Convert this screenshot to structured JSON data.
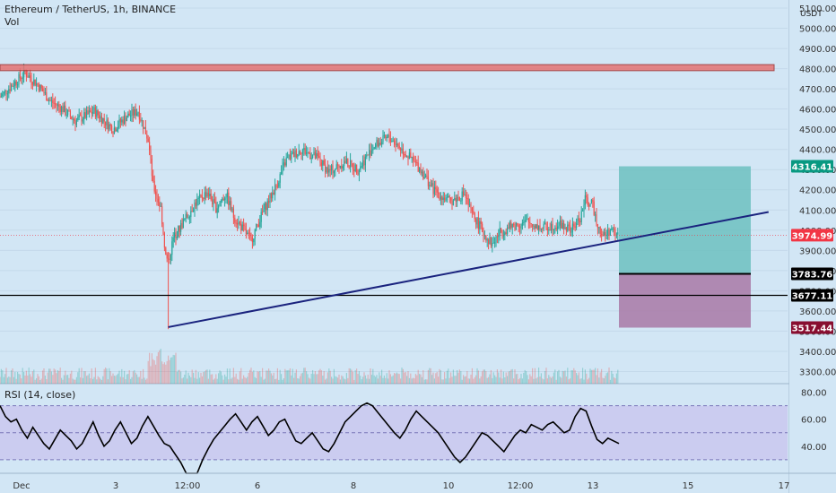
{
  "header": {
    "symbol_line": "Ethereum / TetherUS, 1h, BINANCE",
    "volume_label": "Vol"
  },
  "rsi_header": "RSI (14, close)",
  "colors": {
    "background": "#d2e6f5",
    "up": "#26a69a",
    "down": "#ef5350",
    "trendline": "#1a237e",
    "level_line": "#000000",
    "target_zone": "#6dbfbf",
    "stop_zone": "#a978a6",
    "resistance_band": "#e57373",
    "rsi_band": "#c9c6ef",
    "rsi_line": "#000000",
    "price_tag_green": "#089981",
    "price_tag_red": "#f23645",
    "price_tag_dark": "#000000",
    "price_tag_maroon": "#880e30"
  },
  "chart_data": [
    {
      "type": "candlestick",
      "title": "Ethereum / TetherUS, 1h, BINANCE",
      "y_unit": "USDT",
      "ylim": [
        3240,
        5140
      ],
      "yticks": [
        3300,
        3400,
        3500,
        3600,
        3700,
        3800,
        3900,
        4000,
        4100,
        4200,
        4300,
        4400,
        4500,
        4600,
        4700,
        4800,
        4900,
        5000,
        5100
      ],
      "ytick_labels": [
        "3300.00",
        "3400.00",
        "3500.00",
        "3600.00",
        "3700.00",
        "3800.00",
        "3900.00",
        "4000.00",
        "4100.00",
        "4200.00",
        "4300.00",
        "4400.00",
        "4500.00",
        "4600.00",
        "4700.00",
        "4800.00",
        "4900.00",
        "5000.00",
        "5100.00"
      ],
      "x_labels": [
        "Dec",
        "3",
        "12:00",
        "6",
        "8",
        "10",
        "12:00",
        "13",
        "15",
        "17"
      ],
      "price_path": [
        {
          "t": 0,
          "p": 4660
        },
        {
          "t": 10,
          "p": 4720
        },
        {
          "t": 20,
          "p": 4780
        },
        {
          "t": 30,
          "p": 4720
        },
        {
          "t": 40,
          "p": 4640
        },
        {
          "t": 50,
          "p": 4600
        },
        {
          "t": 60,
          "p": 4540
        },
        {
          "t": 75,
          "p": 4590
        },
        {
          "t": 90,
          "p": 4500
        },
        {
          "t": 100,
          "p": 4560
        },
        {
          "t": 110,
          "p": 4590
        },
        {
          "t": 118,
          "p": 4450
        },
        {
          "t": 122,
          "p": 4220
        },
        {
          "t": 128,
          "p": 4110
        },
        {
          "t": 132,
          "p": 3870
        },
        {
          "t": 134,
          "p": 3840
        },
        {
          "t": 138,
          "p": 3960
        },
        {
          "t": 146,
          "p": 4040
        },
        {
          "t": 155,
          "p": 4130
        },
        {
          "t": 165,
          "p": 4190
        },
        {
          "t": 172,
          "p": 4110
        },
        {
          "t": 180,
          "p": 4180
        },
        {
          "t": 186,
          "p": 4070
        },
        {
          "t": 194,
          "p": 4000
        },
        {
          "t": 200,
          "p": 3950
        },
        {
          "t": 210,
          "p": 4100
        },
        {
          "t": 220,
          "p": 4220
        },
        {
          "t": 228,
          "p": 4350
        },
        {
          "t": 240,
          "p": 4400
        },
        {
          "t": 252,
          "p": 4360
        },
        {
          "t": 262,
          "p": 4290
        },
        {
          "t": 275,
          "p": 4340
        },
        {
          "t": 285,
          "p": 4300
        },
        {
          "t": 298,
          "p": 4420
        },
        {
          "t": 310,
          "p": 4460
        },
        {
          "t": 320,
          "p": 4400
        },
        {
          "t": 335,
          "p": 4300
        },
        {
          "t": 345,
          "p": 4200
        },
        {
          "t": 358,
          "p": 4140
        },
        {
          "t": 370,
          "p": 4180
        },
        {
          "t": 375,
          "p": 4090
        },
        {
          "t": 380,
          "p": 4040
        },
        {
          "t": 388,
          "p": 3960
        },
        {
          "t": 392,
          "p": 3930
        },
        {
          "t": 398,
          "p": 3990
        },
        {
          "t": 408,
          "p": 4020
        },
        {
          "t": 420,
          "p": 4040
        },
        {
          "t": 432,
          "p": 4010
        },
        {
          "t": 445,
          "p": 4030
        },
        {
          "t": 455,
          "p": 4000
        },
        {
          "t": 462,
          "p": 4060
        },
        {
          "t": 466,
          "p": 4150
        },
        {
          "t": 472,
          "p": 4120
        },
        {
          "t": 476,
          "p": 4030
        },
        {
          "t": 480,
          "p": 3970
        },
        {
          "t": 486,
          "p": 4000
        },
        {
          "t": 492,
          "p": 3975
        }
      ],
      "notable_points": {
        "peak_high": 4790,
        "crash_low": 3510,
        "crash_bounce_low": 3820,
        "mid_high": 4480,
        "dip_low": 3810,
        "recent_high": 4170,
        "last_price": 3974.99
      },
      "price_labels": [
        {
          "name": "target",
          "value": "4316.41"
        },
        {
          "name": "last",
          "value": "3974.99"
        },
        {
          "name": "entry",
          "value": "3783.76"
        },
        {
          "name": "support",
          "value": "3677.11"
        },
        {
          "name": "stop",
          "value": "3517.44"
        }
      ],
      "drawings": {
        "resistance_band": [
          4790,
          4820
        ],
        "horizontal_level": 3677.11,
        "trendline": {
          "from": {
            "t": 134,
            "p": 3520
          },
          "to": {
            "t": 612,
            "p": 4090
          }
        },
        "long_position": {
          "target": 4316.41,
          "entry": 3783.76,
          "stop": 3517.44
        }
      }
    },
    {
      "type": "line",
      "title": "RSI (14, close)",
      "ylim": [
        20,
        85
      ],
      "yticks": [
        40,
        60,
        80
      ],
      "ytick_labels": [
        "40.00",
        "60.00",
        "80.00"
      ],
      "band": [
        30,
        70
      ],
      "midline": 50,
      "values": [
        70,
        62,
        58,
        60,
        52,
        46,
        54,
        48,
        42,
        38,
        45,
        52,
        48,
        44,
        38,
        42,
        50,
        58,
        48,
        40,
        44,
        52,
        58,
        50,
        42,
        46,
        55,
        62,
        55,
        48,
        42,
        40,
        34,
        28,
        18,
        14,
        20,
        30,
        38,
        45,
        50,
        55,
        60,
        64,
        58,
        52,
        58,
        62,
        55,
        48,
        52,
        58,
        60,
        52,
        44,
        42,
        46,
        50,
        44,
        38,
        36,
        42,
        50,
        58,
        62,
        66,
        70,
        72,
        70,
        65,
        60,
        55,
        50,
        46,
        52,
        60,
        66,
        62,
        58,
        54,
        50,
        44,
        38,
        32,
        28,
        32,
        38,
        44,
        50,
        48,
        44,
        40,
        36,
        42,
        48,
        52,
        50,
        56,
        54,
        52,
        56,
        58,
        54,
        50,
        52,
        62,
        68,
        66,
        55,
        45,
        42,
        46,
        44,
        42
      ]
    }
  ]
}
